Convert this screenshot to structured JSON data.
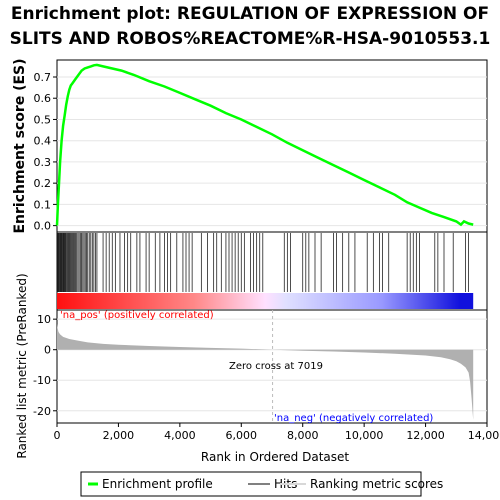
{
  "title_line1": "Enrichment plot: REGULATION OF EXPRESSION OF",
  "title_line2": "SLITS AND ROBOS%REACTOME%R-HSA-9010553.1",
  "top_ylabel": "Enrichment score (ES)",
  "bottom_ylabel": "Ranked list metric (PreRanked)",
  "xlabel": "Rank in Ordered Dataset",
  "pos_label": "'na_pos' (positively correlated)",
  "neg_label": "'na_neg' (negatively correlated)",
  "zero_cross_label": "Zero cross at 7019",
  "colors": {
    "es_line": "#00ff00",
    "pos_label": "#ff0000",
    "neg_label": "#0000ff",
    "metric_fill": "#b0b0b0"
  },
  "legend": [
    {
      "label": "Enrichment profile",
      "color": "#00ff00",
      "kind": "thick-line"
    },
    {
      "label": "Hits",
      "color": "#808080",
      "kind": "line"
    },
    {
      "label": "Ranking metric scores",
      "color": "#d8d8d8",
      "kind": "line"
    }
  ],
  "chart_data": {
    "type": "line",
    "xlim": [
      0,
      14000
    ],
    "x_ticks": [
      0,
      2000,
      4000,
      6000,
      8000,
      10000,
      12000,
      14000
    ],
    "x_tick_labels": [
      "0",
      "2,000",
      "4,000",
      "6,000",
      "8,000",
      "10,000",
      "12,000",
      "14,000"
    ],
    "es": {
      "ylim": [
        -0.03,
        0.78
      ],
      "y_ticks": [
        0.0,
        0.1,
        0.2,
        0.3,
        0.4,
        0.5,
        0.6,
        0.7
      ],
      "y_tick_labels": [
        "0.0",
        "0.1",
        "0.2",
        "0.3",
        "0.4",
        "0.5",
        "0.6",
        "0.7"
      ],
      "series": [
        {
          "name": "Enrichment profile",
          "x": [
            0,
            30,
            60,
            100,
            150,
            200,
            250,
            300,
            350,
            400,
            450,
            500,
            600,
            700,
            800,
            900,
            1000,
            1100,
            1200,
            1300,
            1500,
            1800,
            2100,
            2500,
            3000,
            3500,
            4000,
            4500,
            5000,
            5500,
            6000,
            6500,
            7000,
            7500,
            8000,
            8500,
            9000,
            9500,
            10000,
            10500,
            11000,
            11400,
            11800,
            12200,
            12600,
            13000,
            13150,
            13250,
            13400,
            13550
          ],
          "y": [
            0.0,
            0.1,
            0.18,
            0.3,
            0.4,
            0.47,
            0.52,
            0.57,
            0.61,
            0.64,
            0.66,
            0.67,
            0.69,
            0.71,
            0.73,
            0.74,
            0.745,
            0.75,
            0.755,
            0.757,
            0.75,
            0.74,
            0.73,
            0.71,
            0.68,
            0.655,
            0.625,
            0.595,
            0.565,
            0.53,
            0.5,
            0.465,
            0.43,
            0.39,
            0.355,
            0.32,
            0.285,
            0.25,
            0.215,
            0.18,
            0.145,
            0.11,
            0.085,
            0.06,
            0.04,
            0.02,
            0.005,
            0.02,
            0.01,
            0.005
          ]
        }
      ]
    },
    "hits": [
      20,
      40,
      60,
      80,
      100,
      120,
      140,
      160,
      180,
      200,
      220,
      240,
      260,
      280,
      300,
      330,
      360,
      390,
      420,
      450,
      480,
      510,
      540,
      570,
      600,
      640,
      680,
      720,
      760,
      800,
      840,
      880,
      920,
      960,
      1000,
      1050,
      1100,
      1150,
      1200,
      1250,
      1300,
      1500,
      1600,
      1700,
      1800,
      1900,
      2050,
      2200,
      2300,
      2400,
      2600,
      2700,
      2900,
      3000,
      3200,
      3350,
      3500,
      3600,
      3700,
      3900,
      4100,
      4200,
      4300,
      4400,
      4700,
      4900,
      5100,
      5200,
      5350,
      5500,
      5600,
      5700,
      5800,
      5900,
      6000,
      6100,
      6300,
      6400,
      6500,
      6600,
      6700,
      7400,
      7500,
      7600,
      8000,
      8100,
      8200,
      8400,
      8600,
      9000,
      9100,
      9300,
      9500,
      9700,
      10100,
      10300,
      10500,
      10600,
      10800,
      11400,
      11500,
      11600,
      11700,
      11800,
      12300,
      12400,
      12600,
      12900,
      13300,
      13400
    ],
    "metric": {
      "ylim": [
        -24,
        13
      ],
      "y_ticks": [
        10,
        0,
        -10,
        -20
      ],
      "y_tick_labels": [
        "10",
        "0",
        "-10",
        "-20"
      ],
      "x": [
        0,
        20,
        50,
        100,
        200,
        400,
        700,
        1000,
        1500,
        2000,
        3000,
        4000,
        5000,
        6000,
        7019,
        8000,
        9000,
        10000,
        11000,
        12000,
        12500,
        12800,
        13000,
        13150,
        13300,
        13400,
        13450,
        13500,
        13550
      ],
      "values": [
        8.5,
        7.0,
        5.8,
        5.0,
        4.2,
        3.5,
        2.9,
        2.4,
        1.9,
        1.6,
        1.2,
        0.9,
        0.6,
        0.35,
        0.0,
        -0.35,
        -0.6,
        -0.9,
        -1.3,
        -1.9,
        -2.5,
        -3.1,
        -3.8,
        -4.6,
        -5.8,
        -7.5,
        -10.5,
        -16.0,
        -23.0
      ]
    },
    "zero_cross": 7019
  }
}
